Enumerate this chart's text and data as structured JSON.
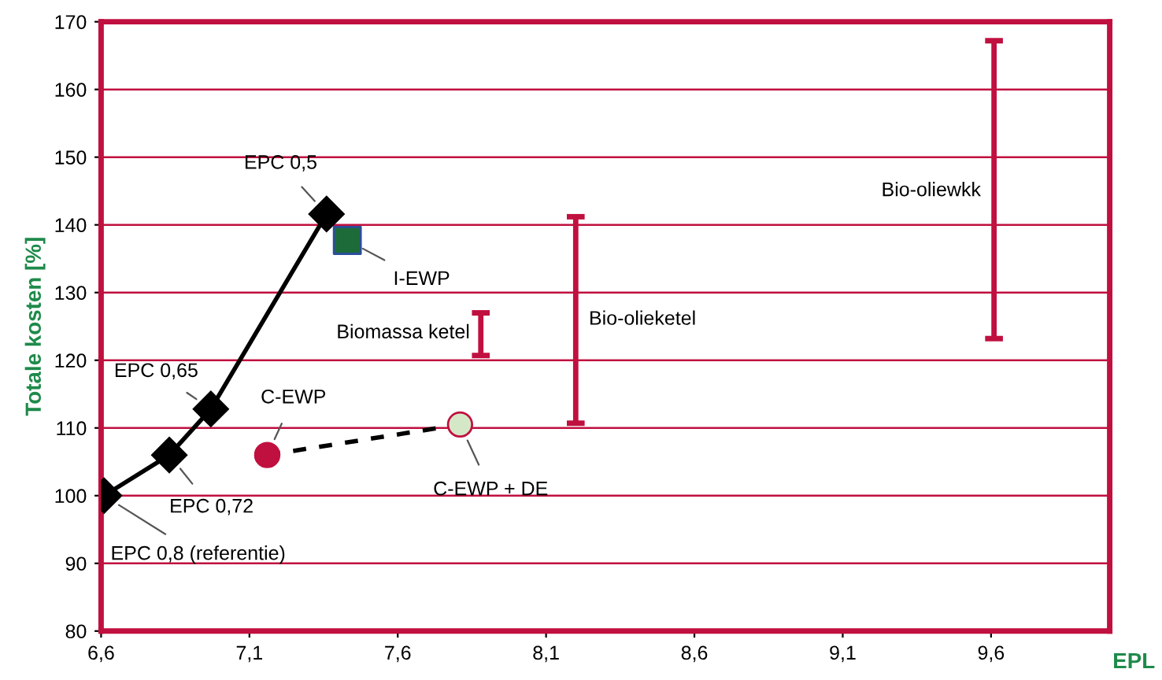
{
  "chart_data": {
    "type": "line",
    "xlabel": "EPL",
    "ylabel": "Totale kosten [%]",
    "xlim": [
      6.6,
      10.0
    ],
    "ylim": [
      80,
      170
    ],
    "xticks": [
      {
        "value": 6.6,
        "label": "6,6"
      },
      {
        "value": 7.1,
        "label": "7,1"
      },
      {
        "value": 7.6,
        "label": "7,6"
      },
      {
        "value": 8.1,
        "label": "8,1"
      },
      {
        "value": 8.6,
        "label": "8,6"
      },
      {
        "value": 9.1,
        "label": "9,1"
      },
      {
        "value": 9.6,
        "label": "9,6"
      }
    ],
    "yticks": [
      80,
      90,
      100,
      110,
      120,
      130,
      140,
      150,
      160,
      170
    ],
    "grid": "y",
    "legend": false,
    "series": [
      {
        "color": "#000000",
        "marker": "diamond",
        "line_style": "solid",
        "x": [
          6.61,
          6.83,
          6.97,
          7.36
        ],
        "values": [
          100,
          106,
          112.8,
          141.6
        ]
      },
      {
        "type": "scatter",
        "color": "#1e6b3a",
        "marker": "square",
        "x": [
          7.43
        ],
        "values": [
          137.7
        ]
      },
      {
        "type": "line",
        "color": "#000000",
        "colors": [
          "#c0103f",
          "#d4e8c8"
        ],
        "marker": "circle",
        "line_style": "dashed",
        "x": [
          7.16,
          7.81
        ],
        "values": [
          106,
          110.5
        ]
      },
      {
        "type": "bar",
        "color": "#c0103f",
        "x": [
          7.88
        ],
        "base": [
          120.7
        ],
        "values": [
          6.3
        ]
      },
      {
        "type": "bar",
        "color": "#c0103f",
        "x": [
          8.2
        ],
        "base": [
          110.7
        ],
        "values": [
          30.5
        ]
      },
      {
        "type": "bar",
        "color": "#c0103f",
        "x": [
          9.61
        ],
        "base": [
          123.2
        ],
        "values": [
          44
        ]
      }
    ],
    "annotations": [
      {
        "text": "EPC 0,8 (referentie)",
        "x": 6.61,
        "y": 100
      },
      {
        "text": "EPC 0,72",
        "x": 6.83,
        "y": 106
      },
      {
        "text": "EPC 0,65",
        "x": 6.97,
        "y": 112.8
      },
      {
        "text": "EPC 0,5",
        "x": 7.36,
        "y": 141.6
      },
      {
        "text": "I-EWP",
        "x": 7.43,
        "y": 137.7
      },
      {
        "text": "C-EWP",
        "x": 7.16,
        "y": 106
      },
      {
        "text": "C-EWP + DE",
        "x": 7.81,
        "y": 110.5
      },
      {
        "text": "Biomassa ketel",
        "x": 7.88,
        "y": 124
      },
      {
        "text": "Bio-olieketel",
        "x": 8.2,
        "y": 126
      },
      {
        "text": "Bio-oliewkk",
        "x": 9.61,
        "y": 145
      }
    ]
  }
}
